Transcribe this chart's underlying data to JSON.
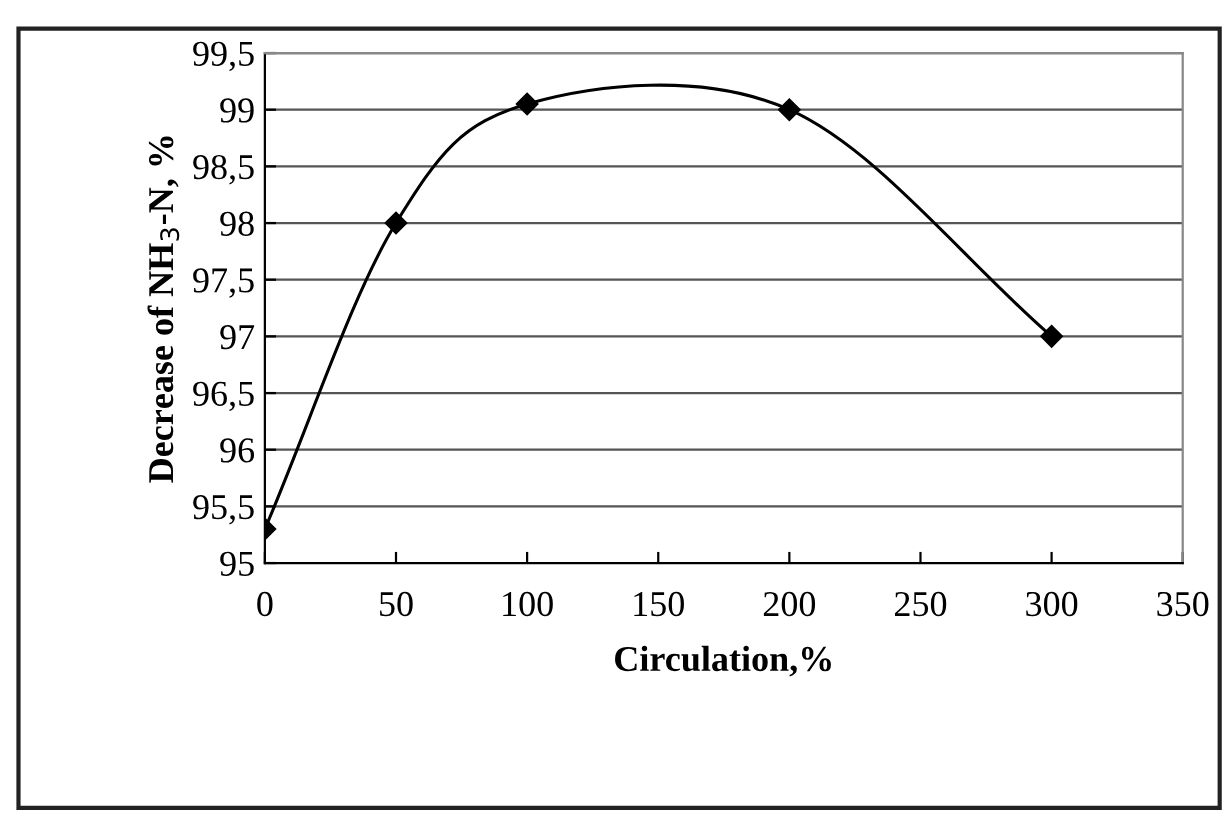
{
  "chart_data": {
    "type": "line",
    "xlabel": "Circulation,%",
    "ylabel": "Decrease of NH$_{3}$-N, %",
    "x": [
      0,
      50,
      100,
      200,
      300
    ],
    "series": [
      {
        "color": "#000000",
        "values": [
          95.3,
          98.0,
          99.05,
          99.0,
          97.0
        ]
      }
    ],
    "marker": "diamond",
    "line_style": "solid",
    "xlim": [
      0,
      350
    ],
    "xticks": [
      0,
      50,
      100,
      150,
      200,
      250,
      300,
      350
    ],
    "ylim": [
      95,
      99.5
    ],
    "yticks": [
      {
        "value": 95,
        "label": "95"
      },
      {
        "value": 95.5,
        "label": "95,5"
      },
      {
        "value": 96,
        "label": "96"
      },
      {
        "value": 96.5,
        "label": "96,5"
      },
      {
        "value": 97,
        "label": "97"
      },
      {
        "value": 97.5,
        "label": "97,5"
      },
      {
        "value": 98,
        "label": "98"
      },
      {
        "value": 98.5,
        "label": "98,5"
      },
      {
        "value": 99,
        "label": "99"
      },
      {
        "value": 99.5,
        "label": "99,5"
      }
    ],
    "grid": "y",
    "legend": false
  }
}
